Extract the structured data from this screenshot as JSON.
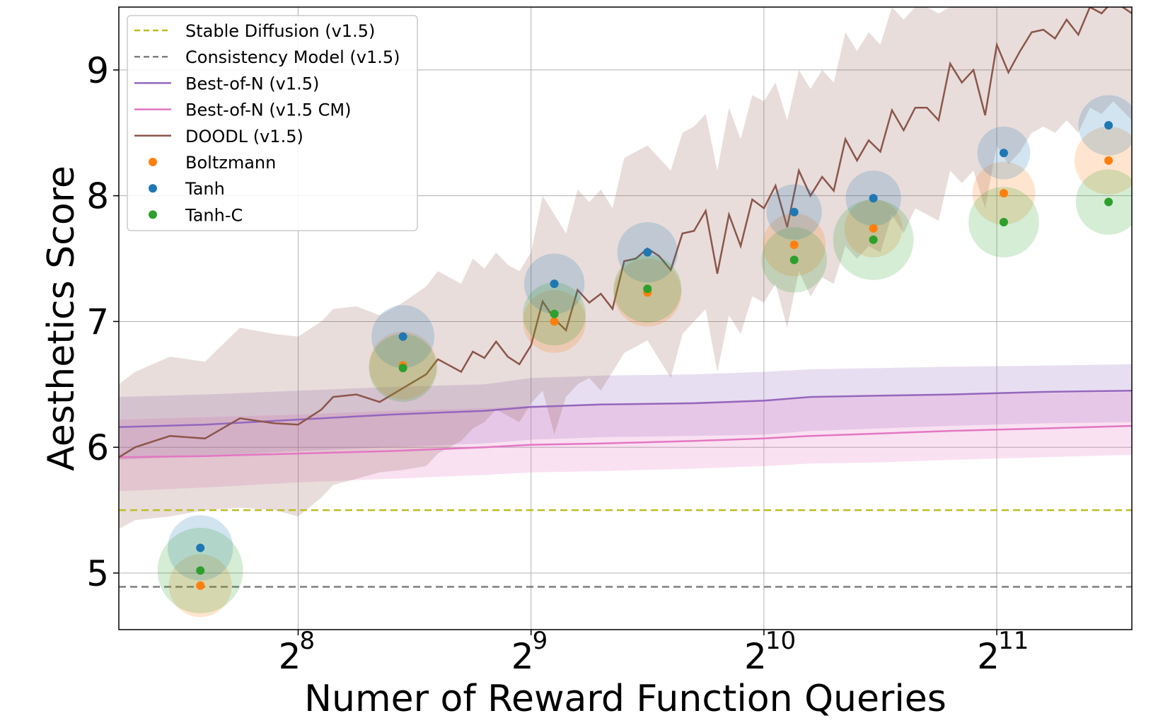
{
  "chart_data": {
    "type": "line",
    "xlabel": "Numer of Reward Function Queries",
    "ylabel": "Aesthetics Score",
    "x_scale": "log2",
    "xlim_log2": [
      7.23,
      11.58
    ],
    "ylim": [
      4.55,
      9.5
    ],
    "grid": true,
    "legend_position": "top-left",
    "x_ticks": [
      {
        "base": "2",
        "exp": "8",
        "log2": 8
      },
      {
        "base": "2",
        "exp": "9",
        "log2": 9
      },
      {
        "base": "2",
        "exp": "10",
        "log2": 10
      },
      {
        "base": "2",
        "exp": "11",
        "log2": 11
      }
    ],
    "y_ticks": [
      5,
      6,
      7,
      8,
      9
    ],
    "reference_lines": [
      {
        "name": "Stable Diffusion (v1.5)",
        "y": 5.5,
        "color": "#bcbd22"
      },
      {
        "name": "Consistency Model (v1.5)",
        "y": 4.89,
        "color": "#7f7f7f"
      }
    ],
    "series": [
      {
        "name": "Best-of-N (v1.5)",
        "color": "#9467bd",
        "x_log2": [
          7.23,
          7.6,
          8.0,
          8.4,
          8.8,
          9.0,
          9.3,
          9.7,
          10.0,
          10.2,
          10.5,
          10.8,
          11.2,
          11.58
        ],
        "values": [
          6.16,
          6.18,
          6.22,
          6.26,
          6.29,
          6.32,
          6.34,
          6.35,
          6.37,
          6.4,
          6.41,
          6.42,
          6.44,
          6.45
        ],
        "band_low": [
          5.9,
          5.93,
          5.97,
          6.0,
          6.03,
          6.06,
          6.08,
          6.09,
          6.1,
          6.13,
          6.15,
          6.17,
          6.19,
          6.2
        ],
        "band_high": [
          6.4,
          6.42,
          6.45,
          6.48,
          6.5,
          6.55,
          6.57,
          6.58,
          6.6,
          6.62,
          6.63,
          6.64,
          6.65,
          6.66
        ]
      },
      {
        "name": "Best-of-N (v1.5 CM)",
        "color": "#e377c2",
        "x_log2": [
          7.23,
          7.6,
          8.0,
          8.4,
          8.8,
          9.0,
          9.3,
          9.7,
          10.0,
          10.2,
          10.5,
          10.8,
          11.2,
          11.58
        ],
        "values": [
          5.92,
          5.93,
          5.95,
          5.97,
          6.0,
          6.02,
          6.03,
          6.05,
          6.07,
          6.09,
          6.11,
          6.13,
          6.15,
          6.17
        ],
        "band_low": [
          5.65,
          5.68,
          5.72,
          5.75,
          5.78,
          5.8,
          5.81,
          5.83,
          5.85,
          5.87,
          5.88,
          5.9,
          5.92,
          5.94
        ],
        "band_high": [
          6.22,
          6.24,
          6.26,
          6.29,
          6.31,
          6.33,
          6.34,
          6.36,
          6.38,
          6.4,
          6.41,
          6.42,
          6.43,
          6.44
        ]
      },
      {
        "name": "DOODL (v1.5)",
        "color": "#8c564b",
        "x_log2": [
          7.23,
          7.3,
          7.45,
          7.6,
          7.75,
          7.9,
          8.0,
          8.1,
          8.15,
          8.25,
          8.35,
          8.45,
          8.55,
          8.6,
          8.7,
          8.75,
          8.8,
          8.85,
          8.9,
          8.95,
          9.0,
          9.05,
          9.1,
          9.15,
          9.2,
          9.25,
          9.3,
          9.35,
          9.4,
          9.45,
          9.5,
          9.55,
          9.6,
          9.65,
          9.7,
          9.75,
          9.8,
          9.85,
          9.9,
          9.95,
          10.0,
          10.05,
          10.1,
          10.15,
          10.2,
          10.25,
          10.3,
          10.35,
          10.4,
          10.45,
          10.5,
          10.55,
          10.6,
          10.65,
          10.7,
          10.75,
          10.8,
          10.85,
          10.9,
          10.95,
          11.0,
          11.05,
          11.1,
          11.15,
          11.2,
          11.25,
          11.3,
          11.35,
          11.4,
          11.45,
          11.5,
          11.58
        ],
        "values": [
          5.92,
          6.0,
          6.09,
          6.07,
          6.23,
          6.19,
          6.18,
          6.3,
          6.4,
          6.42,
          6.36,
          6.47,
          6.58,
          6.7,
          6.6,
          6.76,
          6.71,
          6.84,
          6.72,
          6.66,
          6.81,
          7.16,
          7.02,
          6.93,
          7.25,
          7.15,
          7.22,
          7.1,
          7.48,
          7.5,
          7.58,
          7.52,
          7.41,
          7.7,
          7.72,
          7.88,
          7.38,
          7.85,
          7.6,
          7.97,
          7.9,
          8.08,
          7.75,
          8.2,
          8.0,
          8.15,
          8.04,
          8.45,
          8.28,
          8.44,
          8.35,
          8.68,
          8.52,
          8.7,
          8.7,
          8.6,
          9.05,
          8.9,
          9.0,
          8.64,
          9.2,
          8.98,
          9.15,
          9.3,
          9.32,
          9.25,
          9.4,
          9.28,
          9.5,
          9.45,
          9.55,
          9.45
        ],
        "band_low": [
          5.35,
          5.42,
          5.45,
          5.5,
          5.52,
          5.5,
          5.45,
          5.6,
          5.7,
          5.75,
          5.8,
          5.82,
          5.85,
          5.95,
          6.05,
          6.15,
          6.2,
          6.3,
          6.25,
          6.2,
          6.35,
          6.45,
          6.1,
          6.4,
          6.5,
          6.55,
          6.45,
          6.6,
          6.75,
          6.8,
          6.85,
          6.7,
          6.55,
          6.9,
          7.0,
          7.1,
          6.6,
          7.05,
          6.9,
          7.2,
          7.15,
          7.3,
          6.95,
          7.4,
          7.2,
          7.35,
          7.3,
          7.6,
          7.5,
          7.6,
          7.55,
          7.85,
          7.7,
          7.9,
          7.85,
          7.8,
          8.2,
          8.1,
          8.2,
          7.9,
          8.4,
          8.25,
          8.35,
          8.5,
          8.55,
          8.5,
          8.6,
          8.5,
          8.7,
          8.65,
          8.75,
          8.6
        ],
        "band_high": [
          6.5,
          6.6,
          6.72,
          6.68,
          6.95,
          6.9,
          6.88,
          7.0,
          7.1,
          7.12,
          7.05,
          7.15,
          7.28,
          7.4,
          7.3,
          7.5,
          7.42,
          7.55,
          7.45,
          7.4,
          7.55,
          8.0,
          7.85,
          7.7,
          8.05,
          7.95,
          8.05,
          7.9,
          8.3,
          8.35,
          8.4,
          8.3,
          8.2,
          8.5,
          8.55,
          8.65,
          8.2,
          8.7,
          8.45,
          8.8,
          8.75,
          8.9,
          8.6,
          9.0,
          8.85,
          9.0,
          8.9,
          9.3,
          9.15,
          9.3,
          9.2,
          9.5,
          9.4,
          9.5,
          9.5,
          9.45,
          9.5,
          9.5,
          9.5,
          9.5,
          9.5,
          9.5,
          9.5,
          9.5,
          9.5,
          9.5,
          9.5,
          9.5,
          9.5,
          9.5,
          9.5,
          9.5
        ]
      }
    ],
    "scatter_series": [
      {
        "name": "Boltzmann",
        "color": "#ff7f0e",
        "x_log2": [
          7.58,
          8.45,
          9.1,
          9.5,
          10.13,
          10.47,
          11.03,
          11.48
        ],
        "values": [
          4.9,
          6.65,
          7.0,
          7.23,
          7.61,
          7.74,
          8.02,
          8.28
        ],
        "spread": [
          0.25,
          0.27,
          0.25,
          0.27,
          0.25,
          0.23,
          0.25,
          0.27
        ]
      },
      {
        "name": "Tanh",
        "color": "#1f77b4",
        "x_log2": [
          7.58,
          8.45,
          9.1,
          9.5,
          10.13,
          10.47,
          11.03,
          11.48
        ],
        "values": [
          5.2,
          6.88,
          7.3,
          7.55,
          7.87,
          7.98,
          8.34,
          8.56
        ],
        "spread": [
          0.26,
          0.25,
          0.24,
          0.24,
          0.22,
          0.22,
          0.21,
          0.24
        ]
      },
      {
        "name": "Tanh-C",
        "color": "#2ca02c",
        "x_log2": [
          7.58,
          8.45,
          9.1,
          9.5,
          10.13,
          10.47,
          11.03,
          11.48
        ],
        "values": [
          5.02,
          6.63,
          7.06,
          7.26,
          7.49,
          7.65,
          7.79,
          7.95
        ],
        "spread": [
          0.34,
          0.27,
          0.25,
          0.27,
          0.26,
          0.32,
          0.28,
          0.26
        ]
      }
    ],
    "legend": [
      {
        "label": "Stable Diffusion (v1.5)",
        "kind": "dashed",
        "color": "#bcbd22"
      },
      {
        "label": "Consistency Model (v1.5)",
        "kind": "dashed",
        "color": "#7f7f7f"
      },
      {
        "label": "Best-of-N (v1.5)",
        "kind": "line",
        "color": "#9467bd"
      },
      {
        "label": "Best-of-N (v1.5 CM)",
        "kind": "line",
        "color": "#e377c2"
      },
      {
        "label": "DOODL (v1.5)",
        "kind": "line",
        "color": "#8c564b"
      },
      {
        "label": "Boltzmann",
        "kind": "dot",
        "color": "#ff7f0e"
      },
      {
        "label": "Tanh",
        "kind": "dot",
        "color": "#1f77b4"
      },
      {
        "label": "Tanh-C",
        "kind": "dot",
        "color": "#2ca02c"
      }
    ]
  }
}
